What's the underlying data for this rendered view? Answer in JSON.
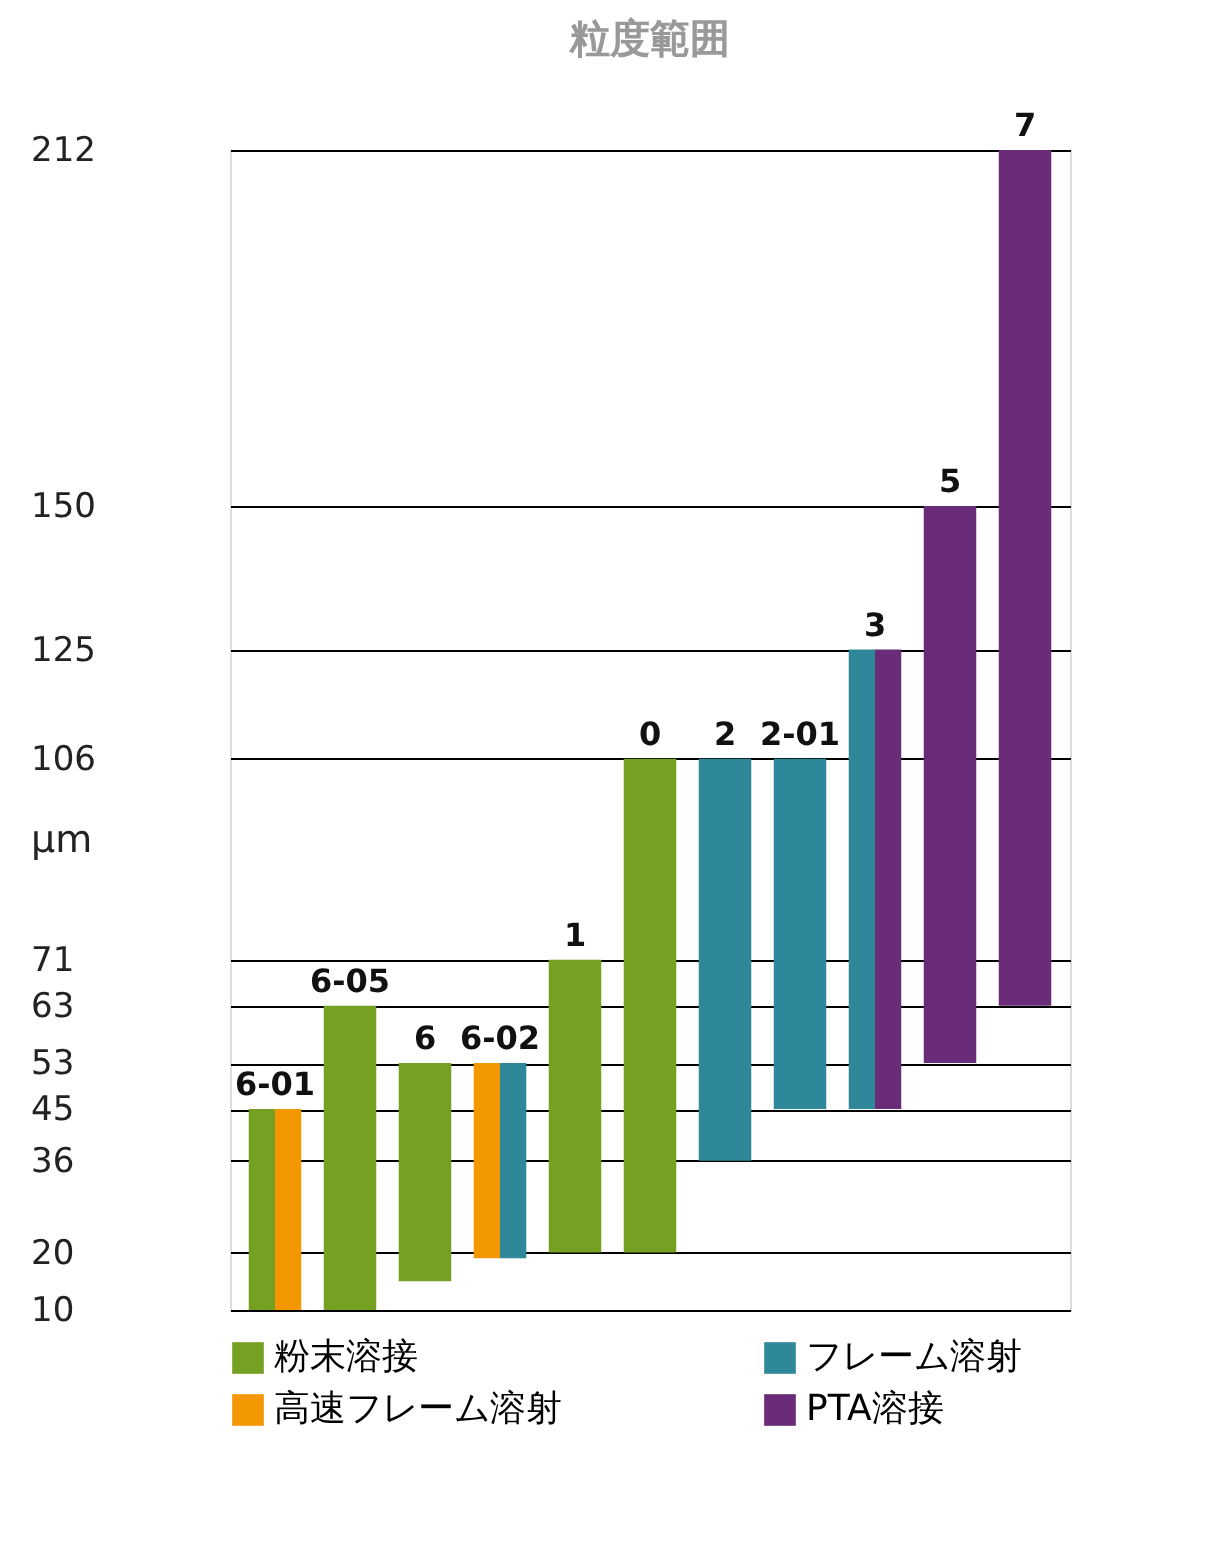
{
  "chart_data": {
    "type": "bar",
    "title": "粒度範囲",
    "ylabel": "µm",
    "categories": [
      "6-01",
      "6-05",
      "6",
      "6-02",
      "1",
      "0",
      "2",
      "2-01",
      "3",
      "5",
      "7"
    ],
    "series": [
      {
        "name": "粉末溶接",
        "color": "#76a022",
        "base": [
          10,
          10,
          15,
          null,
          20,
          20,
          null,
          null,
          null,
          null,
          null
        ],
        "values": [
          35,
          53,
          38,
          null,
          51,
          86,
          null,
          null,
          null,
          null,
          null
        ]
      },
      {
        "name": "フレーム溶射",
        "color": "#2e889a",
        "base": [
          null,
          null,
          null,
          19,
          null,
          null,
          36,
          45,
          45,
          null,
          null
        ],
        "values": [
          null,
          null,
          null,
          34,
          null,
          null,
          70,
          61,
          80,
          null,
          null
        ]
      },
      {
        "name": "高速フレーム溶射",
        "color": "#f39800",
        "base": [
          10,
          null,
          null,
          19,
          null,
          null,
          null,
          null,
          null,
          null,
          null
        ],
        "values": [
          35,
          null,
          null,
          34,
          null,
          null,
          null,
          null,
          null,
          null,
          null
        ]
      },
      {
        "name": "PTA溶接",
        "color": "#6a2c78",
        "base": [
          null,
          null,
          null,
          null,
          null,
          null,
          null,
          null,
          45,
          53,
          63
        ],
        "values": [
          null,
          null,
          null,
          null,
          null,
          null,
          null,
          null,
          80,
          97,
          149
        ]
      }
    ],
    "ylim": [
      10,
      212
    ],
    "yticks": [
      10,
      20,
      36,
      45,
      53,
      63,
      71,
      106,
      125,
      150,
      212
    ],
    "grid": "y",
    "legend": "bottom",
    "tick_labels": "y"
  }
}
